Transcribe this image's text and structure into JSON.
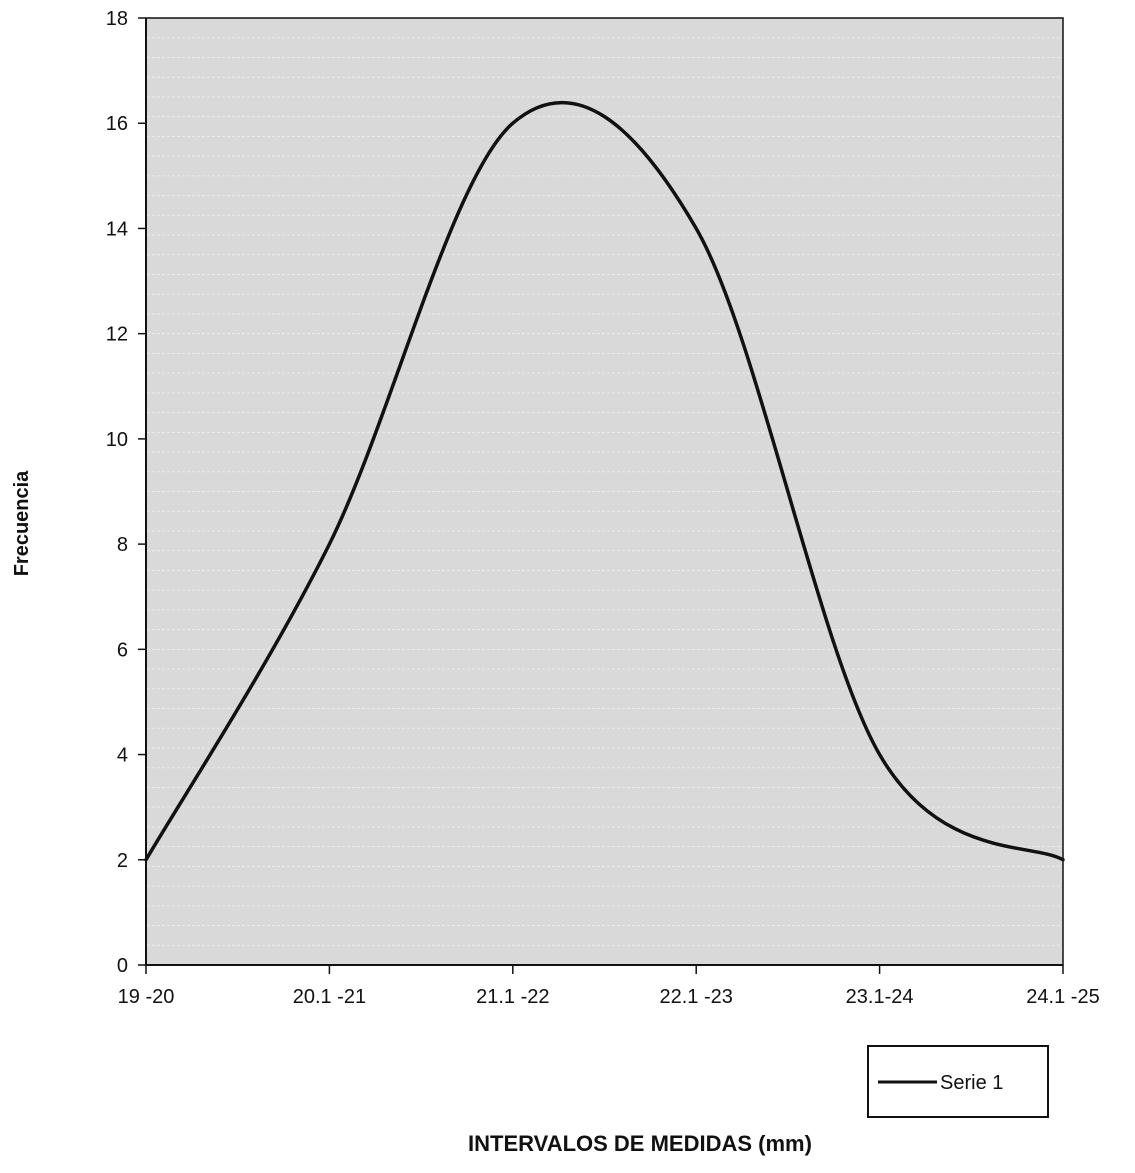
{
  "chart_data": {
    "type": "line",
    "categories": [
      "19 -20",
      "20.1 -21",
      "21.1 -22",
      "22.1 -23",
      "23.1-24",
      "24.1 -25"
    ],
    "series": [
      {
        "name": "Serie 1",
        "values": [
          2,
          8,
          16,
          14,
          4,
          2
        ]
      }
    ],
    "title": "",
    "xlabel": "INTERVALOS DE MEDIDAS (mm)",
    "ylabel": "Frecuencia",
    "ylim": [
      0,
      18
    ],
    "yticks": [
      0,
      2,
      4,
      6,
      8,
      10,
      12,
      14,
      16,
      18
    ],
    "grid": true,
    "smooth": true,
    "legend": "bottom-right",
    "colors": {
      "line": "#111111",
      "plot_bg": "#d9d9d9",
      "grid": "#ececec"
    }
  }
}
